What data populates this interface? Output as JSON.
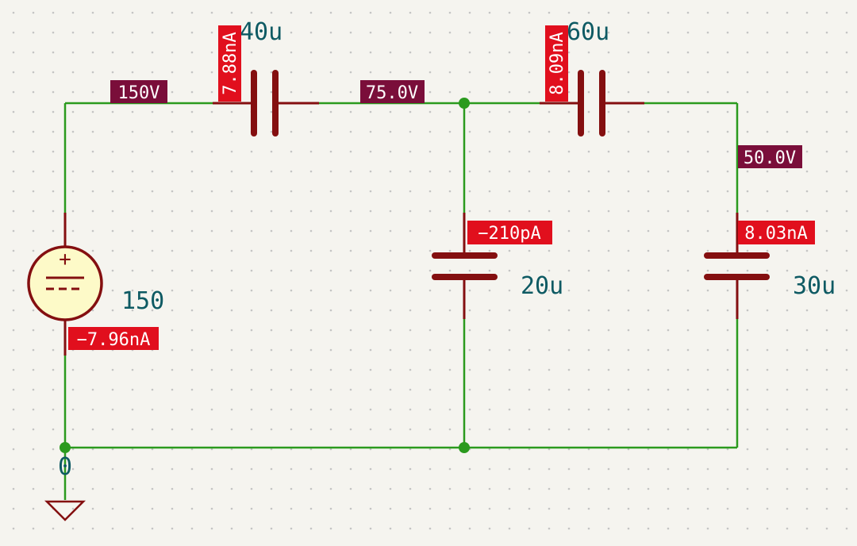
{
  "colors": {
    "background": "#f5f4ef",
    "grid_dot": "#c4c4c4",
    "wire": "#2b9a1e",
    "component": "#840f10",
    "source_fill": "#fdfac8",
    "ground": "#840f10",
    "text": "#0e5a63",
    "voltage_label_bg": "#7a0e3a",
    "current_label_bg": "#e10f1d",
    "label_text": "#ffffff"
  },
  "source": {
    "value": "150",
    "plus_symbol": "+",
    "current": "−7.96nA"
  },
  "capacitors": {
    "c1": {
      "value": "40u",
      "current": "7.88nA"
    },
    "c2": {
      "value": "60u",
      "current": "8.09nA"
    },
    "c3": {
      "value": "20u",
      "current": "−210pA"
    },
    "c4": {
      "value": "30u",
      "current": "8.03nA"
    }
  },
  "node_voltages": {
    "n1": "150V",
    "n2": "75.0V",
    "n3": "50.0V"
  },
  "ground": {
    "label": "0"
  }
}
